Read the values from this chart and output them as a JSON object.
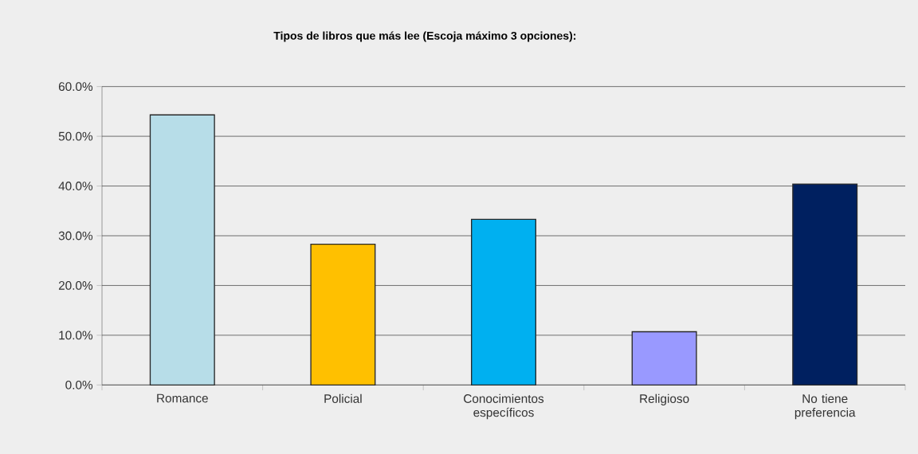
{
  "chart_data": {
    "type": "bar",
    "title": "Tipos de libros que más lee (Escoja máximo 3 opciones):",
    "categories": [
      "Romance",
      "Policial",
      "Conocimientos específicos",
      "Religioso",
      "No tiene preferencia"
    ],
    "values": [
      54.3,
      28.3,
      33.3,
      10.7,
      40.4
    ],
    "colors": [
      "#b7dde8",
      "#ffc000",
      "#00b0f0",
      "#9999ff",
      "#002060"
    ],
    "ylim": [
      0,
      60
    ],
    "yticks": [
      {
        "value": 0,
        "label": "0.0%"
      },
      {
        "value": 10,
        "label": "10.0%"
      },
      {
        "value": 20,
        "label": "20.0%"
      },
      {
        "value": 30,
        "label": "30.0%"
      },
      {
        "value": 40,
        "label": "40.0%"
      },
      {
        "value": 50,
        "label": "50.0%"
      },
      {
        "value": 60,
        "label": "60.0%"
      }
    ],
    "grid": "y"
  }
}
